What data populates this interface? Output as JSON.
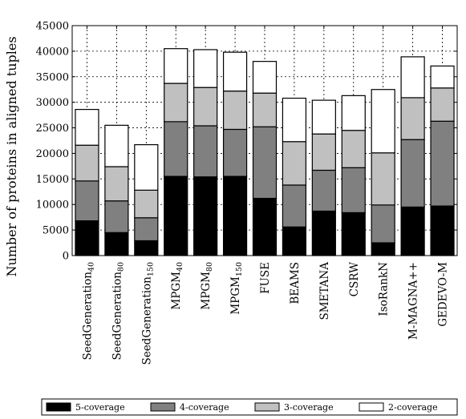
{
  "chart_data": {
    "type": "bar",
    "stacked": true,
    "title": "",
    "xlabel": "",
    "ylabel": "Number of proteins in aligned tuples",
    "ylim": [
      0,
      45000
    ],
    "yticks": [
      0,
      5000,
      10000,
      15000,
      20000,
      25000,
      30000,
      35000,
      40000,
      45000
    ],
    "grid": true,
    "legend_position": "bottom",
    "categories": [
      {
        "base": "SeedGeneration",
        "sub": "40"
      },
      {
        "base": "SeedGeneration",
        "sub": "80"
      },
      {
        "base": "SeedGeneration",
        "sub": "150"
      },
      {
        "base": "MPGM",
        "sub": "40"
      },
      {
        "base": "MPGM",
        "sub": "80"
      },
      {
        "base": "MPGM",
        "sub": "150"
      },
      {
        "base": "FUSE",
        "sub": ""
      },
      {
        "base": "BEAMS",
        "sub": ""
      },
      {
        "base": "SMETANA",
        "sub": ""
      },
      {
        "base": "CSRW",
        "sub": ""
      },
      {
        "base": "IsoRankN",
        "sub": ""
      },
      {
        "base": "M-MAGNA++",
        "sub": ""
      },
      {
        "base": "GEDEVO-M",
        "sub": ""
      }
    ],
    "series": [
      {
        "name": "5-coverage",
        "color": "#000000",
        "values": [
          6800,
          4500,
          2900,
          15500,
          15400,
          15500,
          11200,
          5600,
          8700,
          8400,
          2500,
          9500,
          9700
        ]
      },
      {
        "name": "4-coverage",
        "color": "#808080",
        "values": [
          7800,
          6200,
          4500,
          10700,
          10000,
          9200,
          14000,
          8200,
          8000,
          8800,
          7400,
          13200,
          16600
        ]
      },
      {
        "name": "3-coverage",
        "color": "#c0c0c0",
        "values": [
          7000,
          6700,
          5400,
          7500,
          7500,
          7500,
          6600,
          8500,
          7100,
          7300,
          10200,
          8200,
          6500
        ]
      },
      {
        "name": "2-coverage",
        "color": "#ffffff",
        "values": [
          7000,
          8100,
          8900,
          6800,
          7400,
          7600,
          6200,
          8500,
          6600,
          6800,
          12400,
          8000,
          4300
        ]
      }
    ]
  }
}
